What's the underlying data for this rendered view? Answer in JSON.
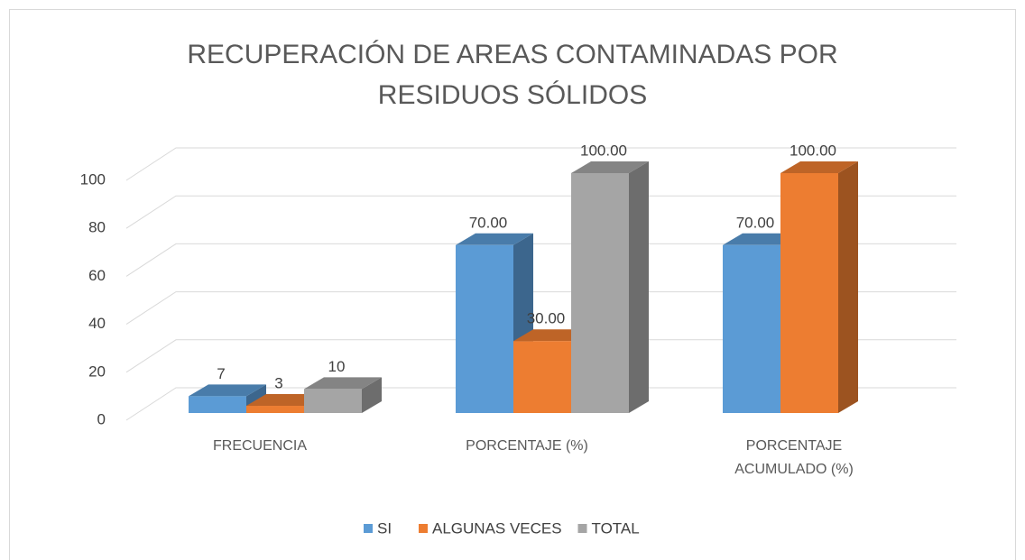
{
  "chart_data": {
    "type": "bar3d",
    "title": "RECUPERACIÓN DE AREAS CONTAMINADAS POR RESIDUOS SÓLIDOS",
    "categories": [
      "FRECUENCIA",
      "PORCENTAJE (%)",
      "PORCENTAJE ACUMULADO (%)"
    ],
    "series": [
      {
        "name": "SI",
        "color": "#5b9bd5",
        "values": [
          7,
          70,
          70
        ],
        "value_labels": [
          "7",
          "70.00",
          "70.00"
        ]
      },
      {
        "name": "ALGUNAS VECES",
        "color": "#ed7d31",
        "values": [
          3,
          30,
          100
        ],
        "value_labels": [
          "3",
          "30.00",
          "100.00"
        ]
      },
      {
        "name": "TOTAL",
        "color": "#a5a5a5",
        "values": [
          10,
          100,
          null
        ],
        "value_labels": [
          "10",
          "100.00",
          null
        ]
      }
    ],
    "ylim": [
      0,
      100
    ],
    "yticks": [
      0,
      20,
      40,
      60,
      80,
      100
    ],
    "grid": true,
    "legend": "bottom"
  }
}
